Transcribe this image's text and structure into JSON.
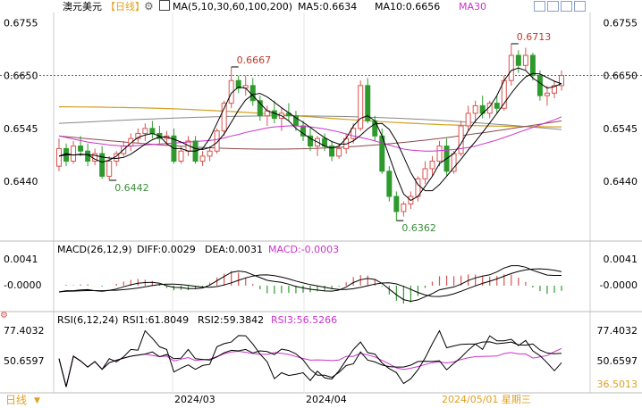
{
  "header": {
    "symbol": "澳元美元",
    "period_tag": "【日线】",
    "ma_label": "MA(5,10,30,60,100,200)",
    "ma5": "MA5:0.6634",
    "ma10": "MA10:0.6656",
    "ma30": "MA30"
  },
  "price_axis": {
    "labels": [
      "0.6755",
      "0.6650",
      "0.6545",
      "0.6440"
    ],
    "values": [
      0.6755,
      0.665,
      0.6545,
      0.644
    ]
  },
  "current_price": 0.665,
  "annotations": {
    "high1": "0.6667",
    "low1": "0.6442",
    "high2": "0.6713",
    "low2": "0.6362"
  },
  "macd": {
    "label": "MACD(26,12,9)",
    "diff": "DIFF:0.0029",
    "dea": "DEA:0.0031",
    "macd": "MACD:-0.0003",
    "axis_labels": [
      "0.0041",
      "-0.0000"
    ]
  },
  "rsi": {
    "label": "RSI(6,12,24)",
    "rsi1": "RSI1:61.8049",
    "rsi2": "RSI2:59.3842",
    "rsi3": "RSI3:56.5266",
    "axis_labels": [
      "77.4032",
      "50.6597",
      "36.5013"
    ]
  },
  "footer": {
    "period": "日线",
    "dates": [
      "2024/03",
      "2024/04"
    ],
    "cursor_date": "2024/05/01 星期三"
  },
  "colors": {
    "up": "#d9534f",
    "down": "#2e9a2e",
    "ma5": "#000000",
    "ma10": "#000000",
    "ma30": "#cc33cc",
    "ma60": "#8b4a4a",
    "ma100": "#888888",
    "ma200": "#d4a020"
  },
  "chart_data": {
    "type": "candlestick",
    "ohlc": [
      [
        0.647,
        0.6525,
        0.646,
        0.6505
      ],
      [
        0.6505,
        0.6515,
        0.647,
        0.648
      ],
      [
        0.648,
        0.652,
        0.6475,
        0.651
      ],
      [
        0.651,
        0.653,
        0.649,
        0.65
      ],
      [
        0.65,
        0.6515,
        0.647,
        0.648
      ],
      [
        0.648,
        0.6505,
        0.6472,
        0.6495
      ],
      [
        0.6495,
        0.651,
        0.6445,
        0.645
      ],
      [
        0.645,
        0.649,
        0.6442,
        0.648
      ],
      [
        0.648,
        0.65,
        0.647,
        0.6495
      ],
      [
        0.6495,
        0.652,
        0.649,
        0.651
      ],
      [
        0.651,
        0.6535,
        0.65,
        0.6525
      ],
      [
        0.6525,
        0.6545,
        0.6515,
        0.6535
      ],
      [
        0.6535,
        0.6555,
        0.652,
        0.6545
      ],
      [
        0.6545,
        0.656,
        0.6525,
        0.6535
      ],
      [
        0.6535,
        0.655,
        0.6515,
        0.6525
      ],
      [
        0.6525,
        0.654,
        0.651,
        0.653
      ],
      [
        0.653,
        0.6545,
        0.6475,
        0.648
      ],
      [
        0.648,
        0.651,
        0.6475,
        0.65
      ],
      [
        0.65,
        0.653,
        0.649,
        0.652
      ],
      [
        0.652,
        0.653,
        0.6475,
        0.648
      ],
      [
        0.648,
        0.65,
        0.647,
        0.649
      ],
      [
        0.649,
        0.651,
        0.648,
        0.65
      ],
      [
        0.65,
        0.6545,
        0.6495,
        0.654
      ],
      [
        0.654,
        0.66,
        0.653,
        0.6595
      ],
      [
        0.6595,
        0.6667,
        0.6585,
        0.664
      ],
      [
        0.664,
        0.665,
        0.6615,
        0.6625
      ],
      [
        0.6625,
        0.665,
        0.661,
        0.663
      ],
      [
        0.663,
        0.6645,
        0.659,
        0.66
      ],
      [
        0.66,
        0.661,
        0.656,
        0.657
      ],
      [
        0.657,
        0.659,
        0.655,
        0.658
      ],
      [
        0.658,
        0.66,
        0.6555,
        0.6565
      ],
      [
        0.6565,
        0.6585,
        0.654,
        0.6575
      ],
      [
        0.6575,
        0.6595,
        0.656,
        0.657
      ],
      [
        0.657,
        0.658,
        0.654,
        0.655
      ],
      [
        0.655,
        0.656,
        0.652,
        0.653
      ],
      [
        0.653,
        0.6545,
        0.65,
        0.651
      ],
      [
        0.651,
        0.653,
        0.649,
        0.6525
      ],
      [
        0.6525,
        0.6535,
        0.65,
        0.651
      ],
      [
        0.651,
        0.652,
        0.648,
        0.649
      ],
      [
        0.649,
        0.6515,
        0.6485,
        0.6505
      ],
      [
        0.6505,
        0.6535,
        0.6495,
        0.6525
      ],
      [
        0.6525,
        0.6555,
        0.6515,
        0.6545
      ],
      [
        0.6545,
        0.664,
        0.654,
        0.663
      ],
      [
        0.663,
        0.6645,
        0.6555,
        0.656
      ],
      [
        0.656,
        0.657,
        0.652,
        0.653
      ],
      [
        0.653,
        0.6545,
        0.6455,
        0.646
      ],
      [
        0.646,
        0.647,
        0.64,
        0.641
      ],
      [
        0.641,
        0.642,
        0.6362,
        0.638
      ],
      [
        0.638,
        0.64,
        0.637,
        0.6395
      ],
      [
        0.6395,
        0.642,
        0.6385,
        0.641
      ],
      [
        0.641,
        0.645,
        0.64,
        0.6445
      ],
      [
        0.6445,
        0.648,
        0.6435,
        0.6465
      ],
      [
        0.6465,
        0.649,
        0.645,
        0.648
      ],
      [
        0.648,
        0.652,
        0.647,
        0.651
      ],
      [
        0.651,
        0.6525,
        0.645,
        0.646
      ],
      [
        0.646,
        0.65,
        0.6455,
        0.6495
      ],
      [
        0.6495,
        0.656,
        0.649,
        0.655
      ],
      [
        0.655,
        0.659,
        0.654,
        0.6575
      ],
      [
        0.6575,
        0.66,
        0.6555,
        0.659
      ],
      [
        0.659,
        0.661,
        0.6565,
        0.6575
      ],
      [
        0.6575,
        0.66,
        0.6565,
        0.6595
      ],
      [
        0.6595,
        0.661,
        0.6575,
        0.6585
      ],
      [
        0.6585,
        0.665,
        0.658,
        0.664
      ],
      [
        0.664,
        0.6713,
        0.663,
        0.669
      ],
      [
        0.669,
        0.67,
        0.6655,
        0.667
      ],
      [
        0.667,
        0.6705,
        0.666,
        0.669
      ],
      [
        0.669,
        0.6695,
        0.664,
        0.665
      ],
      [
        0.665,
        0.666,
        0.66,
        0.661
      ],
      [
        0.661,
        0.663,
        0.659,
        0.6615
      ],
      [
        0.6615,
        0.664,
        0.6605,
        0.663
      ],
      [
        0.663,
        0.666,
        0.662,
        0.665
      ]
    ],
    "ma5": [
      0.649,
      0.6495,
      0.6492,
      0.6494,
      0.6493,
      0.6484,
      0.6478,
      0.6482,
      0.649,
      0.6503,
      0.6516,
      0.6527,
      0.6532,
      0.6535,
      0.653,
      0.6515,
      0.6505,
      0.6505,
      0.65,
      0.65,
      0.6505,
      0.6525,
      0.6555,
      0.6585,
      0.6615,
      0.6627,
      0.6625,
      0.661,
      0.6595,
      0.658,
      0.6575,
      0.657,
      0.656,
      0.6545,
      0.6535,
      0.6525,
      0.6518,
      0.651,
      0.6506,
      0.651,
      0.6525,
      0.655,
      0.6565,
      0.657,
      0.656,
      0.653,
      0.649,
      0.645,
      0.6415,
      0.6402,
      0.641,
      0.643,
      0.645,
      0.6475,
      0.6485,
      0.6495,
      0.6515,
      0.654,
      0.656,
      0.6575,
      0.6588,
      0.661,
      0.664,
      0.666,
      0.6665,
      0.666,
      0.6645,
      0.6635,
      0.6625,
      0.6628,
      0.6634
    ],
    "ma30": [
      0.653,
      0.6527,
      0.6524,
      0.6521,
      0.6518,
      0.6516,
      0.6514,
      0.6512,
      0.6511,
      0.651,
      0.651,
      0.6511,
      0.6512,
      0.6513,
      0.6514,
      0.6515,
      0.6516,
      0.6517,
      0.6518,
      0.6519,
      0.652,
      0.6521,
      0.6523,
      0.6526,
      0.653,
      0.6533,
      0.6537,
      0.654,
      0.6543,
      0.6546,
      0.6548,
      0.6549,
      0.655,
      0.655,
      0.6549,
      0.6548,
      0.6546,
      0.6544,
      0.6541,
      0.6538,
      0.6534,
      0.653,
      0.6527,
      0.6524,
      0.652,
      0.6516,
      0.6512,
      0.6508,
      0.6504,
      0.6502,
      0.6501,
      0.65,
      0.65,
      0.6501,
      0.6502,
      0.6503,
      0.6505,
      0.6507,
      0.651,
      0.6514,
      0.6518,
      0.6522,
      0.6527,
      0.6532,
      0.6537,
      0.6542,
      0.6547,
      0.6552,
      0.6557,
      0.6562,
      0.6568
    ]
  }
}
